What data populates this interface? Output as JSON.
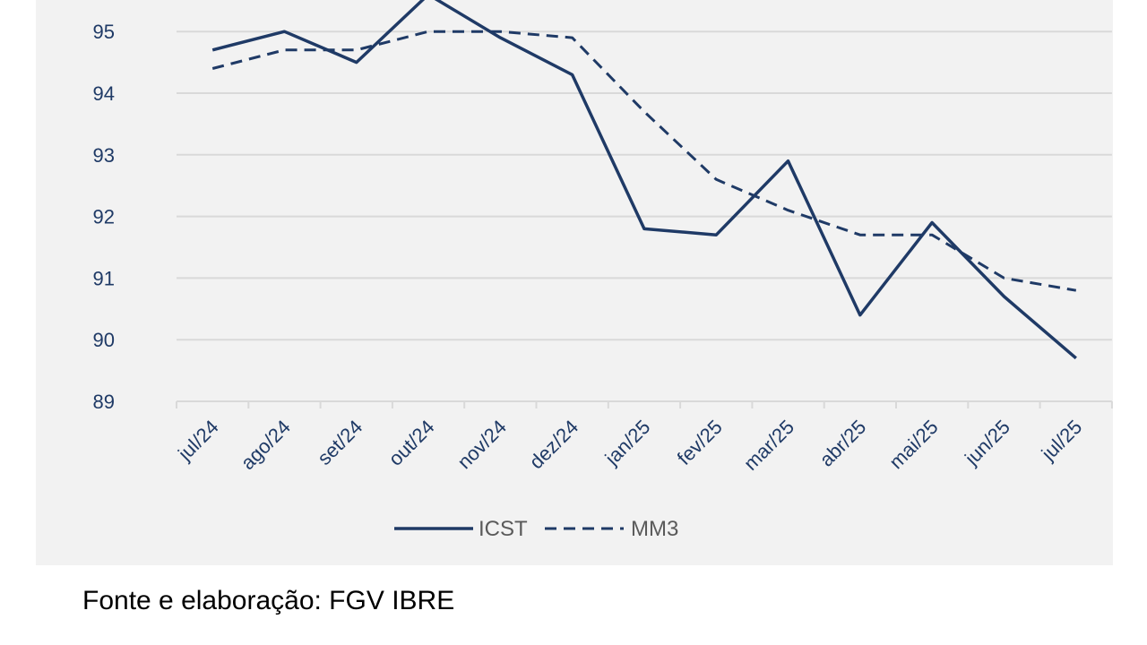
{
  "colors": {
    "series": "#1f3a66",
    "grid": "#d9d9d9",
    "panel_bg": "#f2f2f2"
  },
  "source_note": "Fonte e elaboração: FGV IBRE",
  "chart_data": {
    "type": "line",
    "title": "",
    "xlabel": "",
    "ylabel": "",
    "categories": [
      "jul/24",
      "ago/24",
      "set/24",
      "out/24",
      "nov/24",
      "dez/24",
      "jan/25",
      "fev/25",
      "mar/25",
      "abr/25",
      "mai/25",
      "jun/25",
      "jul/25"
    ],
    "ylim": [
      89,
      95.6
    ],
    "yticks": [
      89,
      90,
      91,
      92,
      93,
      94,
      95
    ],
    "grid": true,
    "legend_position": "bottom",
    "series": [
      {
        "name": "ICST",
        "style": "solid",
        "values": [
          94.7,
          95.0,
          94.5,
          95.6,
          94.9,
          94.3,
          91.8,
          91.7,
          92.9,
          90.4,
          91.9,
          90.7,
          89.7
        ]
      },
      {
        "name": "MM3",
        "style": "dashed",
        "values": [
          94.4,
          94.7,
          94.7,
          95.0,
          95.0,
          94.9,
          93.7,
          92.6,
          92.1,
          91.7,
          91.7,
          91.0,
          90.8
        ]
      }
    ]
  }
}
